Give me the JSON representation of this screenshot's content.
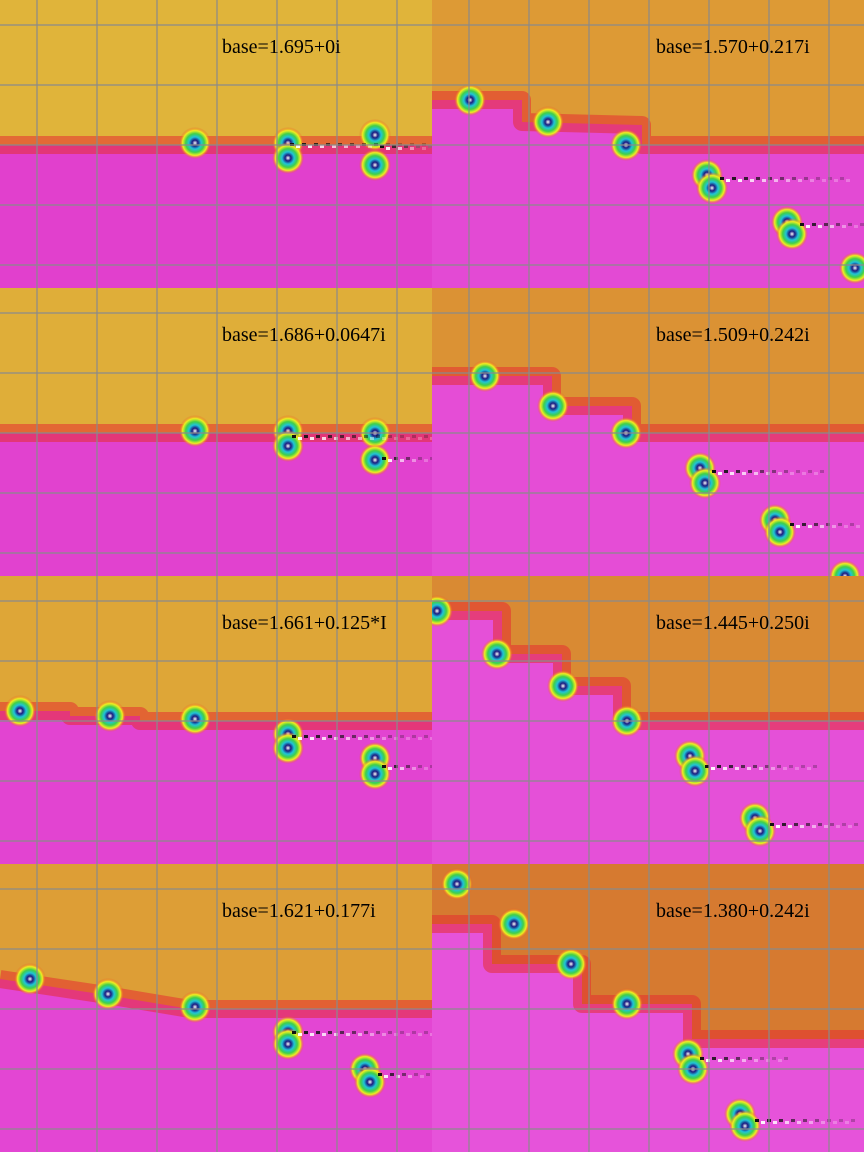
{
  "figure": {
    "panels": [
      {
        "column": "left",
        "row": 1,
        "label": "base=1.695+0i",
        "upper_color": "#e0b43a",
        "lower_color": "#e140cd"
      },
      {
        "column": "right",
        "row": 1,
        "label": "base=1.570+0.217i",
        "upper_color": "#dd9a35",
        "lower_color": "#e34ad4"
      },
      {
        "column": "left",
        "row": 2,
        "label": "base=1.686+0.0647i",
        "upper_color": "#dfae39",
        "lower_color": "#e142cf"
      },
      {
        "column": "right",
        "row": 2,
        "label": "base=1.509+0.242i",
        "upper_color": "#db9234",
        "lower_color": "#e54dd6"
      },
      {
        "column": "left",
        "row": 3,
        "label": "base=1.661+0.125*I",
        "upper_color": "#dea637",
        "lower_color": "#e244d1"
      },
      {
        "column": "right",
        "row": 3,
        "label": "base=1.445+0.250i",
        "upper_color": "#d98a33",
        "lower_color": "#e550d8"
      },
      {
        "column": "left",
        "row": 4,
        "label": "base=1.621+0.177i",
        "upper_color": "#dd9e36",
        "lower_color": "#e346d3"
      },
      {
        "column": "right",
        "row": 4,
        "label": "base=1.380+0.242i",
        "upper_color": "#d67a30",
        "lower_color": "#e653da"
      }
    ],
    "grid_color": "#8a8a8a"
  }
}
